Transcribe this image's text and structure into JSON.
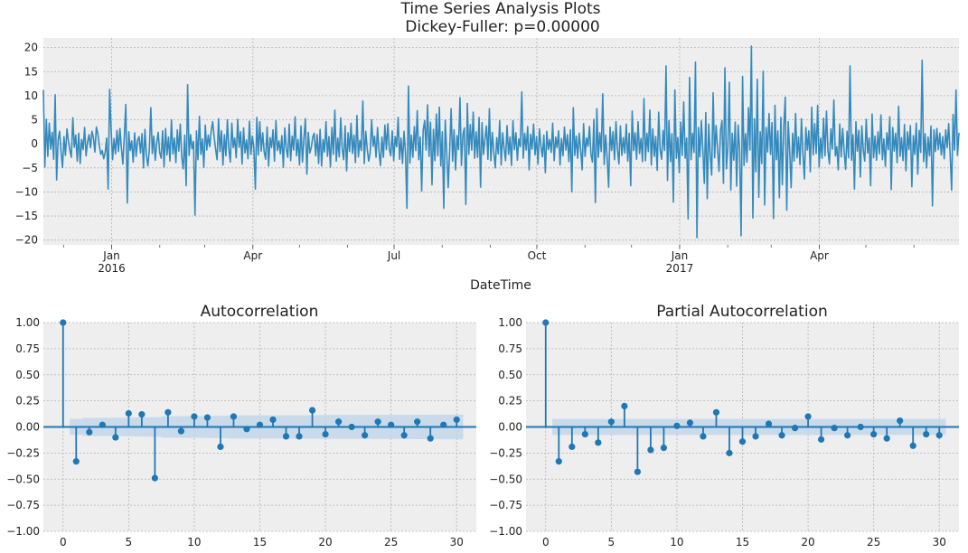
{
  "chart_data": [
    {
      "type": "line",
      "title": "Time Series Analysis Plots",
      "subtitle": "Dickey-Fuller: p=0.00000",
      "xlabel": "DateTime",
      "ylabel": "",
      "ylim": [
        -21,
        22
      ],
      "x_range": [
        "2015-11-18",
        "2017-06-30"
      ],
      "y_ticks": [
        -20,
        -15,
        -10,
        -5,
        0,
        5,
        10,
        15,
        20
      ],
      "x_ticks": [
        {
          "label": "Jan",
          "sublabel": "2016",
          "date": "2016-01-01"
        },
        {
          "label": "Apr",
          "sublabel": "",
          "date": "2016-04-01"
        },
        {
          "label": "Jul",
          "sublabel": "",
          "date": "2016-07-01"
        },
        {
          "label": "Oct",
          "sublabel": "",
          "date": "2016-10-01"
        },
        {
          "label": "Jan",
          "sublabel": "2017",
          "date": "2017-01-01"
        },
        {
          "label": "Apr",
          "sublabel": "",
          "date": "2017-04-01"
        }
      ],
      "grid": true,
      "series": [
        {
          "color": "#348ABD",
          "values": [
            11.2,
            -4.8,
            5.1,
            -2.6,
            4.3,
            -1.1,
            2.4,
            -3.2,
            10.2,
            -7.5,
            0.8,
            2.6,
            -1.7,
            -4.9,
            1.5,
            -2.4,
            3.1,
            0.6,
            -1.3,
            -2.8,
            5.4,
            -0.7,
            1.8,
            -3.6,
            2.2,
            -4.1,
            0.9,
            -1.2,
            3.4,
            -2.5,
            0.4,
            1.9,
            -0.8,
            2.6,
            1.3,
            -1.7,
            3.5,
            2.1,
            -0.4,
            -2.2,
            -1.4,
            -3.1,
            -1.8,
            1.2,
            -9.4,
            11.3,
            3.0,
            -3.3,
            1.1,
            -2.1,
            2.8,
            -1.6,
            3.2,
            -0.9,
            -4.2,
            1.7,
            8.2,
            -12.3,
            2.5,
            -1.4,
            0.6,
            -3.8,
            2.3,
            -2.6,
            0.7,
            1.5,
            -1.9,
            2.1,
            -5.0,
            3.0,
            -2.4,
            -4.6,
            -1.1,
            7.5,
            -2.0,
            1.6,
            -3.4,
            0.2,
            2.4,
            -1.8,
            -3.0,
            2.7,
            -4.8,
            3.2,
            -2.3,
            1.4,
            -3.6,
            5.0,
            -2.1,
            1.2,
            -3.9,
            2.9,
            -1.5,
            4.1,
            -2.8,
            -5.2,
            1.8,
            -8.7,
            12.3,
            -2.4,
            1.9,
            -1.0,
            0.5,
            -14.8,
            2.7,
            -3.3,
            5.7,
            -2.2,
            1.0,
            -4.9,
            3.9,
            -1.3,
            1.8,
            -0.6,
            2.7,
            4.6,
            1.5,
            -1.1,
            -3.3,
            5.2,
            -1.6,
            2.7,
            -4.4,
            1.9,
            -2.5,
            5.0,
            -1.0,
            -3.8,
            4.3,
            -0.8,
            1.2,
            -2.9,
            5.1,
            -0.7,
            2.5,
            -4.2,
            3.3,
            -1.9,
            0.8,
            -3.1,
            4.7,
            -2.2,
            1.6,
            -0.9,
            -9.4,
            5.5,
            -2.3,
            4.6,
            -1.5,
            2.3,
            -1.7,
            -3.2,
            3.5,
            -4.6,
            1.3,
            -0.8,
            2.9,
            -3.6,
            4.8,
            -1.4,
            0.6,
            -2.1,
            1.7,
            -4.9,
            3.3,
            -1.0,
            -2.8,
            4.1,
            -3.5,
            1.6,
            -1.3,
            5.6,
            -2.5,
            0.9,
            -4.4,
            3.7,
            -3.8,
            1.1,
            5.2,
            -6.3,
            2.4,
            -1.9,
            -0.8,
            1.4,
            2.2,
            -2.5,
            1.9,
            -4.1,
            3.0,
            -4.6,
            0.9,
            -1.7,
            4.6,
            -2.6,
            1.5,
            -4.8,
            3.4,
            -2.2,
            7.0,
            -3.6,
            1.2,
            -2.7,
            5.4,
            -1.0,
            -3.3,
            3.7,
            -5.6,
            2.3,
            -1.6,
            4.3,
            -2.0,
            1.8,
            -3.9,
            5.9,
            -2.7,
            0.7,
            -1.4,
            8.9,
            -4.1,
            2.6,
            -1.1,
            -3.6,
            -1.9,
            5.0,
            -0.5,
            1.6,
            -2.8,
            3.4,
            -1.5,
            -4.5,
            1.4,
            -2.8,
            3.9,
            -1.2,
            4.2,
            -1.0,
            -2.5,
            2.7,
            -3.5,
            1.5,
            -0.6,
            5.5,
            -3.2,
            1.2,
            -4.1,
            2.6,
            -2.0,
            -13.4,
            12.0,
            -4.0,
            1.8,
            -2.8,
            3.6,
            -1.4,
            6.9,
            -3.3,
            1.4,
            -9.8,
            2.8,
            4.8,
            -1.3,
            8.1,
            -2.6,
            4.5,
            -8.5,
            3.0,
            -3.5,
            6.2,
            -2.5,
            7.6,
            -4.6,
            2.5,
            -13.4,
            4.9,
            -1.8,
            -9.1,
            -1.5,
            7.3,
            -3.6,
            2.9,
            -5.4,
            1.7,
            -1.2,
            9.6,
            -4.5,
            1.9,
            3.3,
            -12.6,
            8.4,
            -2.2,
            4.0,
            -1.3,
            6.6,
            -3.0,
            2.5,
            -2.8,
            5.5,
            -9.0,
            4.4,
            -2.2,
            1.1,
            3.7,
            -3.2,
            7.3,
            -3.5,
            2.4,
            -1.8,
            -5.0,
            1.3,
            -2.1,
            4.8,
            -4.4,
            2.3,
            -1.0,
            -3.5,
            3.8,
            -2.2,
            1.4,
            -4.5,
            4.8,
            -1.2,
            2.3,
            -3.4,
            1.0,
            -0.6,
            10.8,
            -3.0,
            2.2,
            -1.3,
            3.6,
            -5.4,
            2.0,
            -1.1,
            4.1,
            -2.3,
            1.5,
            -4.2,
            3.1,
            -0.5,
            -2.7,
            1.8,
            -6.0,
            2.6,
            -1.2,
            0.9,
            -1.8,
            4.3,
            -3.5,
            1.4,
            -0.8,
            2.7,
            -4.4,
            1.1,
            -2.5,
            3.5,
            -1.3,
            1.9,
            -3.7,
            2.9,
            -10.0,
            7.5,
            -2.4,
            1.6,
            -3.0,
            2.2,
            -1.2,
            -5.4,
            4.2,
            -2.6,
            1.2,
            -0.5,
            3.6,
            -2.2,
            -3.8,
            5.1,
            -12.2,
            7.3,
            -2.8,
            2.3,
            -1.6,
            10.4,
            -4.3,
            1.8,
            -2.9,
            -9.0,
            3.5,
            -1.4,
            2.5,
            -3.3,
            4.6,
            -1.1,
            -4.2,
            3.7,
            -2.4,
            1.3,
            -1.9,
            4.1,
            -3.6,
            2.2,
            -8.7,
            6.8,
            -1.4,
            2.3,
            -3.2,
            4.6,
            -2.0,
            1.1,
            -3.7,
            9.4,
            -3.5,
            2.2,
            -1.6,
            7.0,
            -4.4,
            3.1,
            -2.6,
            1.5,
            -5.5,
            6.6,
            -1.2,
            -3.2,
            2.8,
            -1.4,
            16.2,
            -7.6,
            4.8,
            -3.7,
            2.1,
            -12.1,
            11.2,
            -3.0,
            1.3,
            -6.0,
            4.5,
            -2.4,
            8.7,
            -3.0,
            1.2,
            -15.6,
            13.8,
            -3.3,
            2.2,
            -1.8,
            17.0,
            -19.5,
            3.4,
            -2.7,
            4.8,
            -1.3,
            -8.2,
            6.5,
            -11.4,
            4.1,
            -2.3,
            -6.5,
            10.6,
            -2.9,
            3.8,
            -1.0,
            -5.7,
            2.7,
            4.8,
            -8.2,
            15.8,
            -5.2,
            -0.8,
            12.8,
            -9.6,
            2.2,
            -3.4,
            4.5,
            -8.8,
            3.9,
            -1.4,
            -19.1,
            14.0,
            -4.5,
            2.1,
            -3.8,
            7.5,
            -1.3,
            20.3,
            -15.4,
            5.2,
            -5.8,
            13.4,
            -11.1,
            2.5,
            -4.1,
            15.1,
            -12.7,
            3.4,
            -1.7,
            6.3,
            -2.2,
            4.4,
            -15.5,
            8.0,
            -3.3,
            2.7,
            -11.2,
            5.5,
            -8.5,
            3.6,
            9.7,
            -13.8,
            4.6,
            -1.5,
            -9.1,
            2.2,
            -3.6,
            6.3,
            -2.9,
            1.4,
            -4.3,
            5.2,
            -2.0,
            -7.3,
            3.4,
            -1.3,
            2.7,
            -5.8,
            7.6,
            -2.3,
            4.2,
            -2.0,
            8.0,
            -4.8,
            1.2,
            -3.0,
            5.3,
            -2.5,
            6.8,
            -1.4,
            -4.2,
            3.1,
            -1.1,
            9.1,
            -2.5,
            -0.6,
            -5.4,
            4.1,
            -2.7,
            3.2,
            -1.6,
            -5.3,
            2.6,
            -2.9,
            16.2,
            -3.4,
            1.9,
            -9.4,
            4.6,
            -1.5,
            2.8,
            -6.9,
            3.7,
            -1.3,
            -3.6,
            5.1,
            -1.9,
            1.2,
            -8.7,
            6.2,
            -2.9,
            1.6,
            -3.4,
            2.5,
            -2.1,
            6.0,
            -3.3,
            1.0,
            -4.7,
            2.3,
            -1.2,
            5.6,
            -9.5,
            3.4,
            -1.5,
            2.2,
            -3.9,
            7.8,
            -2.6,
            1.3,
            -3.5,
            4.0,
            -5.6,
            2.5,
            -1.2,
            3.8,
            -8.9,
            1.7,
            -2.2,
            4.3,
            -6.3,
            2.8,
            -1.8,
            17.4,
            -3.7,
            2.1,
            -5.0,
            1.4,
            -2.5,
            3.7,
            -12.9,
            2.9,
            -1.6,
            3.2,
            -1.2,
            2.2,
            -2.3,
            1.5,
            -3.1,
            2.9,
            -0.8,
            4.2,
            -2.0,
            -9.6,
            6.1,
            -1.3,
            11.2,
            -2.4,
            2.3
          ]
        }
      ]
    },
    {
      "type": "scatter",
      "title": "Autocorrelation",
      "xlabel": "",
      "ylabel": "",
      "xlim": [
        -1.5,
        31.5
      ],
      "ylim": [
        -1.0,
        1.0
      ],
      "x_ticks": [
        0,
        5,
        10,
        15,
        20,
        25,
        30
      ],
      "y_ticks": [
        -1.0,
        -0.75,
        -0.5,
        -0.25,
        0.0,
        0.25,
        0.5,
        0.75,
        1.0
      ],
      "y_tick_labels": [
        "−1.00",
        "−0.75",
        "−0.50",
        "−0.25",
        "0.00",
        "0.25",
        "0.50",
        "0.75",
        "1.00"
      ],
      "grid": true,
      "lags": [
        0,
        1,
        2,
        3,
        4,
        5,
        6,
        7,
        8,
        9,
        10,
        11,
        12,
        13,
        14,
        15,
        16,
        17,
        18,
        19,
        20,
        21,
        22,
        23,
        24,
        25,
        26,
        27,
        28,
        29,
        30
      ],
      "values": [
        1.0,
        -0.33,
        -0.05,
        0.02,
        -0.1,
        0.13,
        0.12,
        -0.49,
        0.14,
        -0.04,
        0.1,
        0.09,
        -0.19,
        0.1,
        -0.02,
        0.02,
        0.07,
        -0.09,
        -0.09,
        0.16,
        -0.07,
        0.05,
        0.0,
        -0.08,
        0.05,
        0.02,
        -0.08,
        0.05,
        -0.11,
        0.02,
        0.07
      ],
      "confint_lower": [
        -0.07,
        -0.077,
        -0.087,
        -0.088,
        -0.088,
        -0.09,
        -0.092,
        -0.094,
        -0.103,
        -0.104,
        -0.105,
        -0.106,
        -0.107,
        -0.11,
        -0.111,
        -0.111,
        -0.111,
        -0.112,
        -0.112,
        -0.113,
        -0.115,
        -0.115,
        -0.115,
        -0.115,
        -0.116,
        -0.116,
        -0.116,
        -0.117,
        -0.117,
        -0.118,
        -0.118
      ],
      "confint_upper": [
        0.07,
        0.077,
        0.087,
        0.088,
        0.088,
        0.09,
        0.092,
        0.094,
        0.103,
        0.104,
        0.105,
        0.106,
        0.107,
        0.11,
        0.111,
        0.111,
        0.111,
        0.112,
        0.112,
        0.113,
        0.115,
        0.115,
        0.115,
        0.115,
        0.116,
        0.116,
        0.116,
        0.117,
        0.117,
        0.118,
        0.118
      ],
      "color": "#1f77b4"
    },
    {
      "type": "scatter",
      "title": "Partial Autocorrelation",
      "xlabel": "",
      "ylabel": "",
      "xlim": [
        -1.5,
        31.5
      ],
      "ylim": [
        -1.0,
        1.0
      ],
      "x_ticks": [
        0,
        5,
        10,
        15,
        20,
        25,
        30
      ],
      "y_ticks": [
        -1.0,
        -0.75,
        -0.5,
        -0.25,
        0.0,
        0.25,
        0.5,
        0.75,
        1.0
      ],
      "y_tick_labels": [
        "−1.00",
        "−0.75",
        "−0.50",
        "−0.25",
        "0.00",
        "0.25",
        "0.50",
        "0.75",
        "1.00"
      ],
      "grid": true,
      "lags": [
        0,
        1,
        2,
        3,
        4,
        5,
        6,
        7,
        8,
        9,
        10,
        11,
        12,
        13,
        14,
        15,
        16,
        17,
        18,
        19,
        20,
        21,
        22,
        23,
        24,
        25,
        26,
        27,
        28,
        29,
        30
      ],
      "values": [
        1.0,
        -0.33,
        -0.19,
        -0.07,
        -0.15,
        0.05,
        0.2,
        -0.43,
        -0.22,
        -0.2,
        0.01,
        0.04,
        -0.09,
        0.14,
        -0.25,
        -0.14,
        -0.09,
        0.03,
        -0.08,
        -0.01,
        0.1,
        -0.12,
        -0.01,
        -0.08,
        0.0,
        -0.07,
        -0.11,
        0.06,
        -0.18,
        -0.07,
        -0.08
      ],
      "confint_lower": [
        -0.07,
        -0.077,
        -0.077,
        -0.077,
        -0.077,
        -0.077,
        -0.077,
        -0.077,
        -0.077,
        -0.077,
        -0.077,
        -0.077,
        -0.077,
        -0.077,
        -0.077,
        -0.077,
        -0.077,
        -0.077,
        -0.077,
        -0.077,
        -0.077,
        -0.077,
        -0.077,
        -0.077,
        -0.077,
        -0.077,
        -0.077,
        -0.077,
        -0.077,
        -0.077,
        -0.077
      ],
      "confint_upper": [
        0.07,
        0.077,
        0.077,
        0.077,
        0.077,
        0.077,
        0.077,
        0.077,
        0.077,
        0.077,
        0.077,
        0.077,
        0.077,
        0.077,
        0.077,
        0.077,
        0.077,
        0.077,
        0.077,
        0.077,
        0.077,
        0.077,
        0.077,
        0.077,
        0.077,
        0.077,
        0.077,
        0.077,
        0.077,
        0.077,
        0.077
      ],
      "color": "#1f77b4"
    }
  ],
  "colors": {
    "background": "#ffffff",
    "panel": "#eeeeee",
    "grid": "#b2b2b2",
    "ts_line": "#348ABD",
    "acf": "#1f77b4",
    "band": "#c2d7e9"
  }
}
